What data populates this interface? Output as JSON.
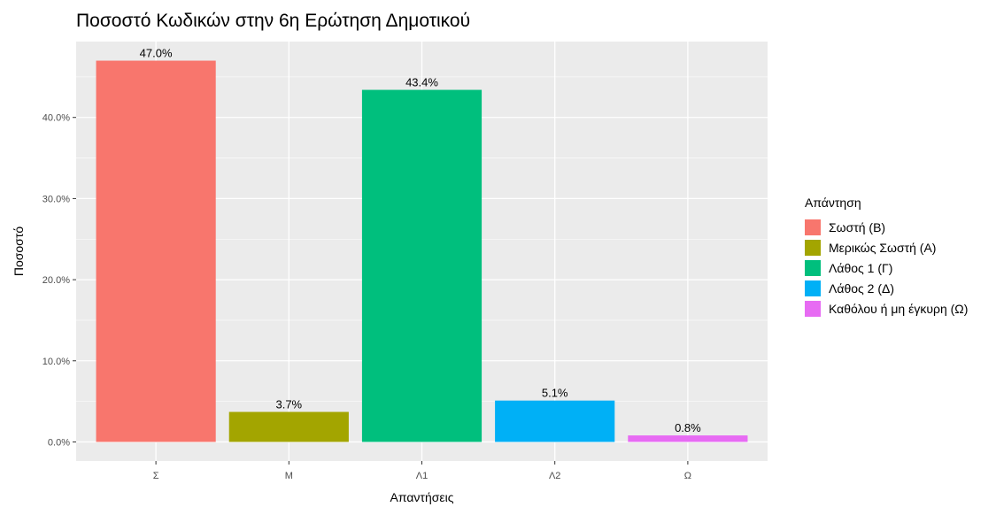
{
  "chart_data": {
    "type": "bar",
    "title": "Ποσοστό Κωδικών στην 6η Ερώτηση Δημοτικού",
    "xlabel": "Απαντήσεις",
    "ylabel": "Ποσοστό",
    "categories": [
      "Σ",
      "Μ",
      "Λ1",
      "Λ2",
      "Ω"
    ],
    "values": [
      47.0,
      3.7,
      43.4,
      5.1,
      0.8
    ],
    "data_labels": [
      "47.0%",
      "3.7%",
      "43.4%",
      "5.1%",
      "0.8%"
    ],
    "colors": [
      "#F8766D",
      "#A3A500",
      "#00BF7D",
      "#00B0F6",
      "#E76BF3"
    ],
    "ylim": [
      -2.35,
      49.35
    ],
    "yticks": [
      0,
      10,
      20,
      30,
      40
    ],
    "ytick_labels": [
      "0.0%",
      "10.0%",
      "20.0%",
      "30.0%",
      "40.0%"
    ],
    "grid": true,
    "panel_background": "#EBEBEB",
    "legend": {
      "title": "Απάντηση",
      "placement": "right",
      "entries": [
        "Σωστή (Β)",
        "Μερικώς Σωστή (Α)",
        "Λάθος 1 (Γ)",
        "Λάθος 2 (Δ)",
        "Καθόλου ή μη έγκυρη (Ω)"
      ]
    }
  }
}
